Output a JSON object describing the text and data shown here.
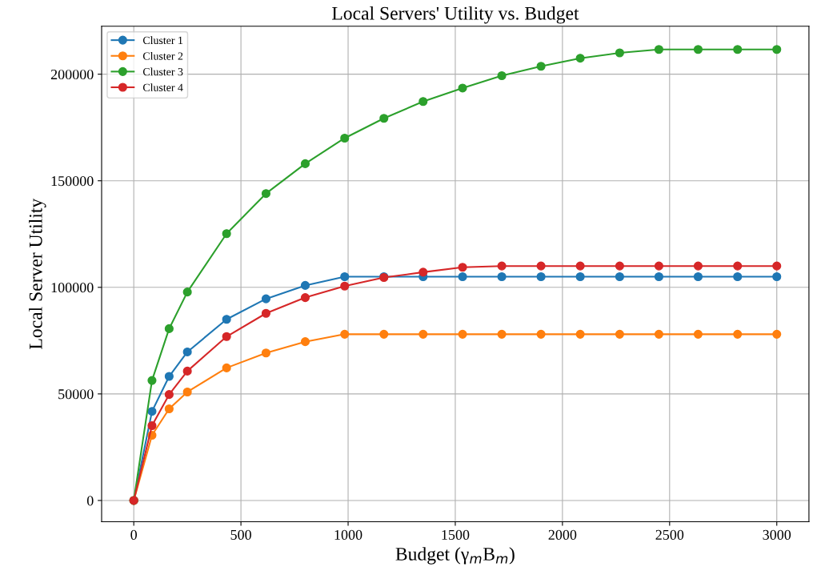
{
  "chart_data": {
    "type": "line",
    "title": "Local Servers' Utility vs. Budget",
    "xlabel": "Budget (γ$_{m}$B$_{m}$)",
    "ylabel": "Local Server Utility",
    "x": [
      0,
      85,
      165,
      250,
      433,
      617,
      800,
      984,
      1167,
      1350,
      1534,
      1717,
      1900,
      2083,
      2267,
      2450,
      2633,
      2817,
      3000
    ],
    "series": [
      {
        "name": "Cluster 1",
        "color": "#1f77b4",
        "values": [
          0,
          41800,
          58200,
          69700,
          85000,
          94600,
          100900,
          105000,
          105000,
          105000,
          105000,
          105000,
          105000,
          105000,
          105000,
          105000,
          105000,
          105000,
          105000
        ]
      },
      {
        "name": "Cluster 2",
        "color": "#ff7f0e",
        "values": [
          0,
          30600,
          43000,
          50900,
          62200,
          69200,
          74500,
          78000,
          78000,
          78000,
          78000,
          78000,
          78000,
          78000,
          78000,
          78000,
          78000,
          78000,
          78000
        ]
      },
      {
        "name": "Cluster 3",
        "color": "#2ca02c",
        "values": [
          0,
          56300,
          80600,
          97800,
          125200,
          144000,
          158000,
          170000,
          179300,
          187200,
          193500,
          199300,
          203700,
          207500,
          210000,
          211600,
          211600,
          211600,
          211600
        ]
      },
      {
        "name": "Cluster 4",
        "color": "#d62728",
        "values": [
          0,
          35100,
          49700,
          60700,
          76900,
          87800,
          95200,
          100600,
          104600,
          107100,
          109400,
          110000,
          110000,
          110000,
          110000,
          110000,
          110000,
          110000,
          110000
        ]
      }
    ],
    "xlim": [
      -150,
      3150
    ],
    "ylim": [
      -10000,
      222500
    ],
    "xticks": [
      0,
      500,
      1000,
      1500,
      2000,
      2500,
      3000
    ],
    "yticks": [
      0,
      50000,
      100000,
      150000,
      200000
    ],
    "grid": true,
    "legend": "top left",
    "marker": "circle",
    "line_style": "solid"
  }
}
